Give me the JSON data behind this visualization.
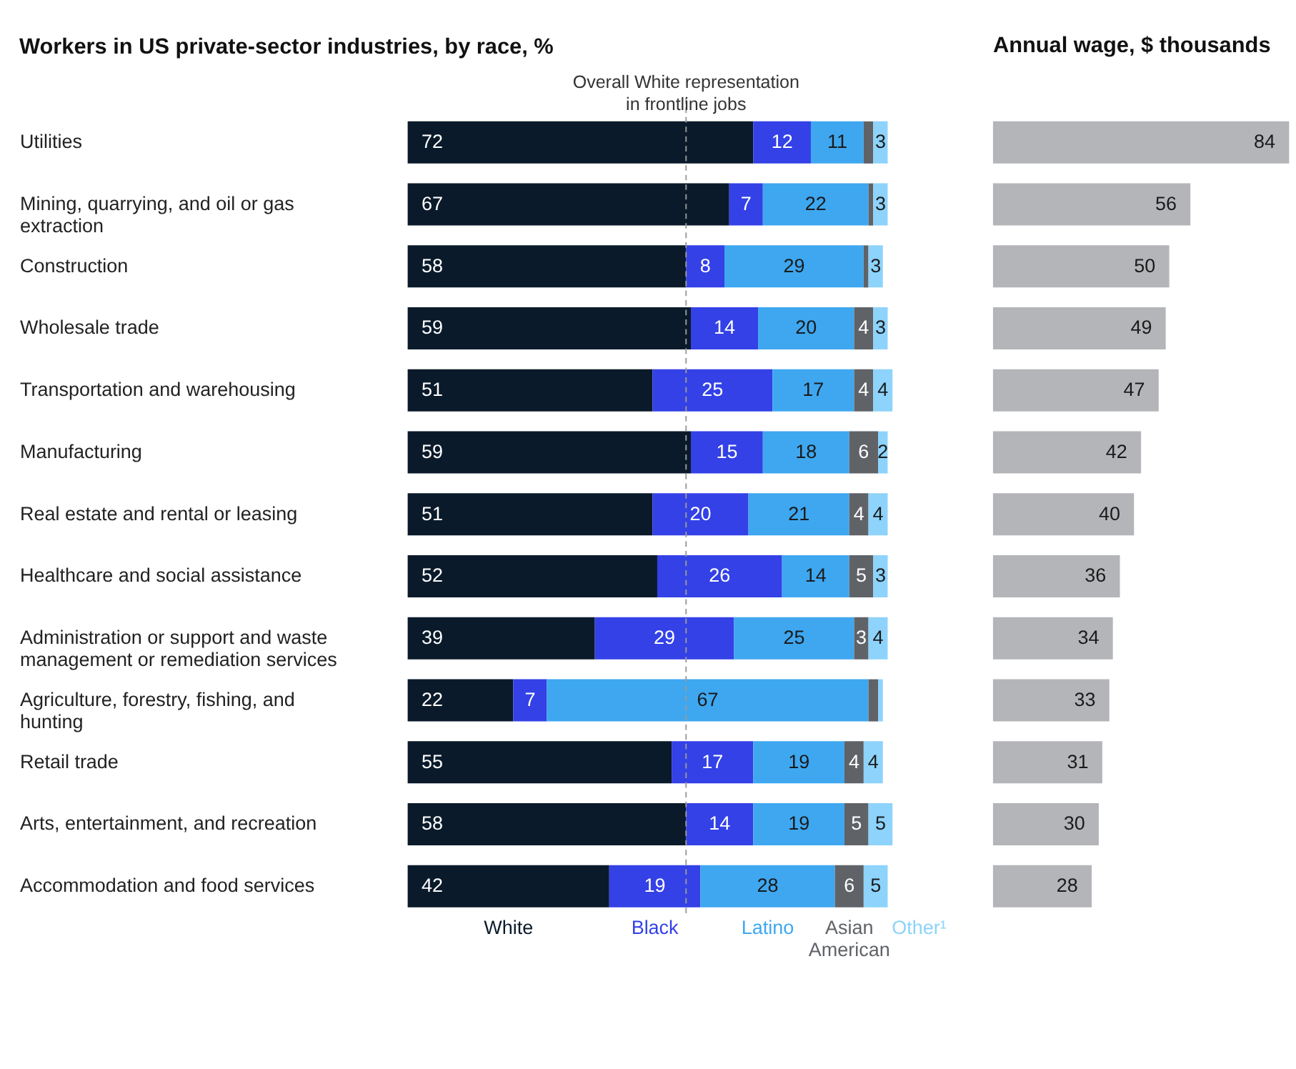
{
  "chart_data": [
    {
      "type": "bar",
      "orientation": "horizontal",
      "stacked": true,
      "title": "Workers in US private-sector industries, by race, %",
      "categories": [
        "Utilities",
        "Mining, quarrying, and oil or gas extraction",
        "Construction",
        "Wholesale trade",
        "Transportation and warehousing",
        "Manufacturing",
        "Real estate and rental or leasing",
        "Healthcare and social assistance",
        "Administration or support and waste management or remediation services",
        "Agriculture, forestry, fishing, and hunting",
        "Retail trade",
        "Arts, entertainment, and recreation",
        "Accommodation and food services"
      ],
      "series": [
        {
          "name": "White",
          "color": "#0a1a2a",
          "values": [
            72,
            67,
            58,
            59,
            51,
            59,
            51,
            52,
            39,
            22,
            55,
            58,
            42
          ],
          "value_labels": [
            "72",
            "67",
            "58",
            "59",
            "51",
            "59",
            "51",
            "52",
            "39",
            "22",
            "55",
            "58",
            "42"
          ]
        },
        {
          "name": "Black",
          "color": "#3341e6",
          "values": [
            12,
            7,
            8,
            14,
            25,
            15,
            20,
            26,
            29,
            7,
            17,
            14,
            19
          ],
          "value_labels": [
            "12",
            "7",
            "8",
            "14",
            "25",
            "15",
            "20",
            "26",
            "29",
            "7",
            "17",
            "14",
            "19"
          ]
        },
        {
          "name": "Latino",
          "color": "#3ea7f0",
          "values": [
            11,
            22,
            29,
            20,
            17,
            18,
            21,
            14,
            25,
            67,
            19,
            19,
            28
          ],
          "value_labels": [
            "11",
            "22",
            "29",
            "20",
            "17",
            "18",
            "21",
            "14",
            "25",
            "67",
            "19",
            "19",
            "28"
          ]
        },
        {
          "name": "Asian American",
          "color": "#5f6368",
          "values": [
            2,
            1,
            1,
            4,
            4,
            6,
            4,
            5,
            3,
            2,
            4,
            5,
            6
          ],
          "value_labels": [
            null,
            null,
            null,
            "4",
            "4",
            "6",
            "4",
            "5",
            "3",
            null,
            "4",
            "5",
            "6"
          ]
        },
        {
          "name": "Other¹",
          "color": "#8dd3fb",
          "values": [
            3,
            3,
            3,
            3,
            4,
            2,
            4,
            3,
            4,
            1,
            4,
            5,
            5
          ],
          "value_labels": [
            "3",
            "3",
            "3",
            "3",
            "4",
            "2",
            "4",
            "3",
            "4",
            null,
            "4",
            "5",
            "5"
          ]
        }
      ],
      "ref_lines": [
        {
          "axis": "x",
          "value": 58,
          "label": "Overall White representation in frontline jobs",
          "color": "#9a9a9a",
          "line_style": "dashed"
        }
      ],
      "legend": "bottom",
      "tick_labels": "y"
    },
    {
      "type": "bar",
      "orientation": "horizontal",
      "title": "Annual wage, $ thousands",
      "categories": [
        null,
        null,
        null,
        null,
        null,
        null,
        null,
        null,
        null,
        null,
        null,
        null,
        null
      ],
      "values": [
        84,
        56,
        50,
        49,
        47,
        42,
        40,
        36,
        34,
        33,
        31,
        30,
        28
      ],
      "color": "#b3b5b8",
      "data_labels": true,
      "tick_labels": false
    }
  ]
}
